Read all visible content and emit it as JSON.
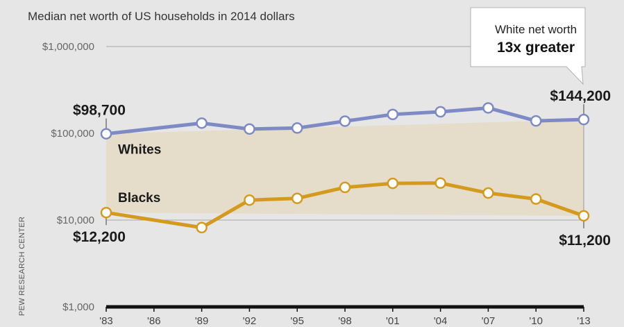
{
  "chart_data": {
    "type": "line",
    "title": "Median net worth of US households in 2014 dollars",
    "y_scale": "log",
    "ylim": [
      1000,
      1000000
    ],
    "y_ticks": [
      {
        "value": 1000,
        "label": "$1,000"
      },
      {
        "value": 10000,
        "label": "$10,000"
      },
      {
        "value": 100000,
        "label": "$100,000"
      },
      {
        "value": 1000000,
        "label": "$1,000,000"
      }
    ],
    "x_ticks": [
      "'83",
      "'86",
      "'89",
      "'92",
      "'95",
      "'98",
      "'01",
      "'04",
      "'07",
      "'10",
      "'13"
    ],
    "x_tick_years": [
      1983,
      1986,
      1989,
      1992,
      1995,
      1998,
      2001,
      2004,
      2007,
      2010,
      2013
    ],
    "x": [
      1983,
      1989,
      1992,
      1995,
      1998,
      2001,
      2004,
      2007,
      2010,
      2013
    ],
    "series": [
      {
        "name": "Whites",
        "color": "#7d8ac4",
        "values": [
          98700,
          131000,
          112000,
          115000,
          138000,
          165000,
          177000,
          196000,
          139000,
          144200
        ],
        "start_label": "$98,700",
        "end_label": "$144,200"
      },
      {
        "name": "Blacks",
        "color": "#d49a1e",
        "values": [
          12200,
          8200,
          17000,
          17800,
          23800,
          26500,
          26700,
          20500,
          17500,
          11200
        ],
        "start_label": "$12,200",
        "end_label": "$11,200"
      }
    ],
    "gap_fill_color": "#e5dcc9",
    "grid": true,
    "callout": {
      "line1": "White net worth",
      "line2": "13x greater"
    },
    "source": "PEW RESEARCH CENTER"
  }
}
